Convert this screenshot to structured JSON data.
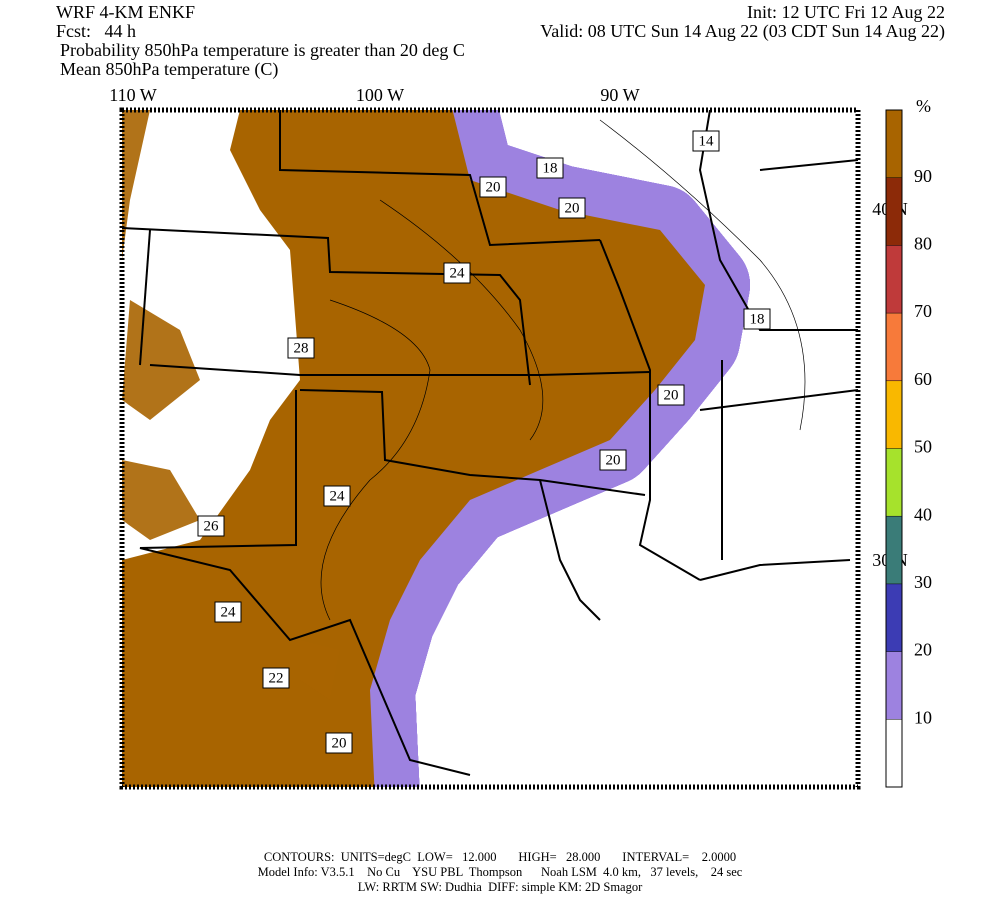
{
  "header": {
    "model": "WRF 4-KM ENKF",
    "forecast": "Fcst:   44 h",
    "init": "Init: 12 UTC Fri 12 Aug 22",
    "valid": "Valid: 08 UTC Sun 14 Aug 22 (03 CDT Sun 14 Aug 22)",
    "title_lines": [
      "Probability 850hPa temperature is greater than 20 deg C",
      "Mean 850hPa temperature (C)"
    ]
  },
  "map": {
    "lon_labels": [
      "110 W",
      "100 W",
      "90 W"
    ],
    "lat_labels": [
      "40 N",
      "30 N"
    ],
    "contour_labels": [
      "14",
      "18",
      "20",
      "20",
      "24",
      "18",
      "28",
      "20",
      "20",
      "24",
      "26",
      "24",
      "22",
      "20"
    ]
  },
  "colorbar": {
    "unit": "%",
    "lim": [
      0,
      100
    ],
    "ticks": [
      10,
      20,
      30,
      40,
      50,
      60,
      70,
      80,
      90
    ],
    "colors": [
      "#ffffff",
      "#9d82e0",
      "#3c3cb4",
      "#3a7c78",
      "#a6e22c",
      "#f9b800",
      "#f77a3a",
      "#bf3a3a",
      "#8c2a08",
      "#a86400"
    ]
  },
  "footer": [
    "CONTOURS:  UNITS=degC  LOW=   12.000       HIGH=   28.000       INTERVAL=    2.0000",
    "Model Info: V3.5.1    No Cu    YSU PBL  Thompson      Noah LSM  4.0 km,   37 levels,    24 sec",
    "LW: RRTM SW: Dudhia  DIFF: simple KM: 2D Smagor"
  ]
}
